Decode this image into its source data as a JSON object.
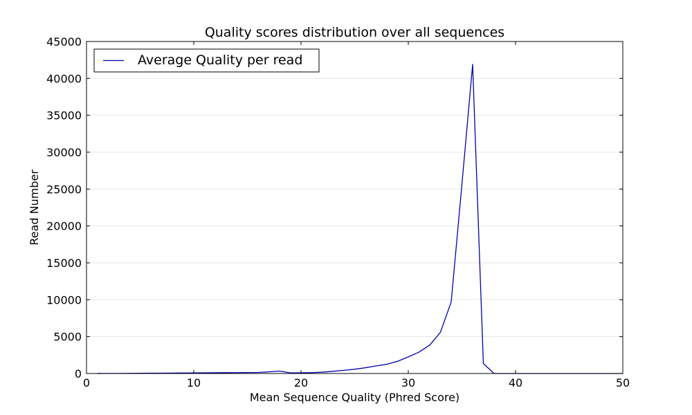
{
  "chart_data": {
    "type": "line",
    "title": "Quality scores distribution over all sequences",
    "xlabel": "Mean Sequence Quality (Phred Score)",
    "ylabel": "Read Number",
    "xlim": [
      0,
      50
    ],
    "ylim": [
      0,
      45000
    ],
    "xticks": [
      0,
      10,
      20,
      30,
      40,
      50
    ],
    "yticks": [
      0,
      5000,
      10000,
      15000,
      20000,
      25000,
      30000,
      35000,
      40000,
      45000
    ],
    "grid": "horizontal",
    "legend_position": "top-left",
    "series": [
      {
        "name": "Average Quality per read",
        "color": "#0000aa",
        "x": [
          1,
          2,
          3,
          4,
          5,
          6,
          7,
          8,
          9,
          10,
          11,
          12,
          13,
          14,
          15,
          16,
          17,
          18,
          19,
          20,
          21,
          22,
          23,
          24,
          25,
          26,
          27,
          28,
          29,
          30,
          31,
          32,
          33,
          34,
          35,
          36,
          37,
          38,
          39,
          40,
          41,
          42,
          43,
          44,
          45,
          46,
          47,
          48,
          49,
          50
        ],
        "y": [
          5,
          10,
          15,
          20,
          30,
          40,
          50,
          60,
          70,
          80,
          90,
          100,
          110,
          120,
          130,
          140,
          220,
          330,
          80,
          90,
          120,
          180,
          300,
          430,
          580,
          780,
          1030,
          1250,
          1650,
          2250,
          2900,
          3850,
          5600,
          9700,
          25600,
          41900,
          1350,
          0,
          0,
          0,
          0,
          0,
          0,
          0,
          0,
          0,
          0,
          0,
          0,
          0
        ]
      }
    ]
  }
}
